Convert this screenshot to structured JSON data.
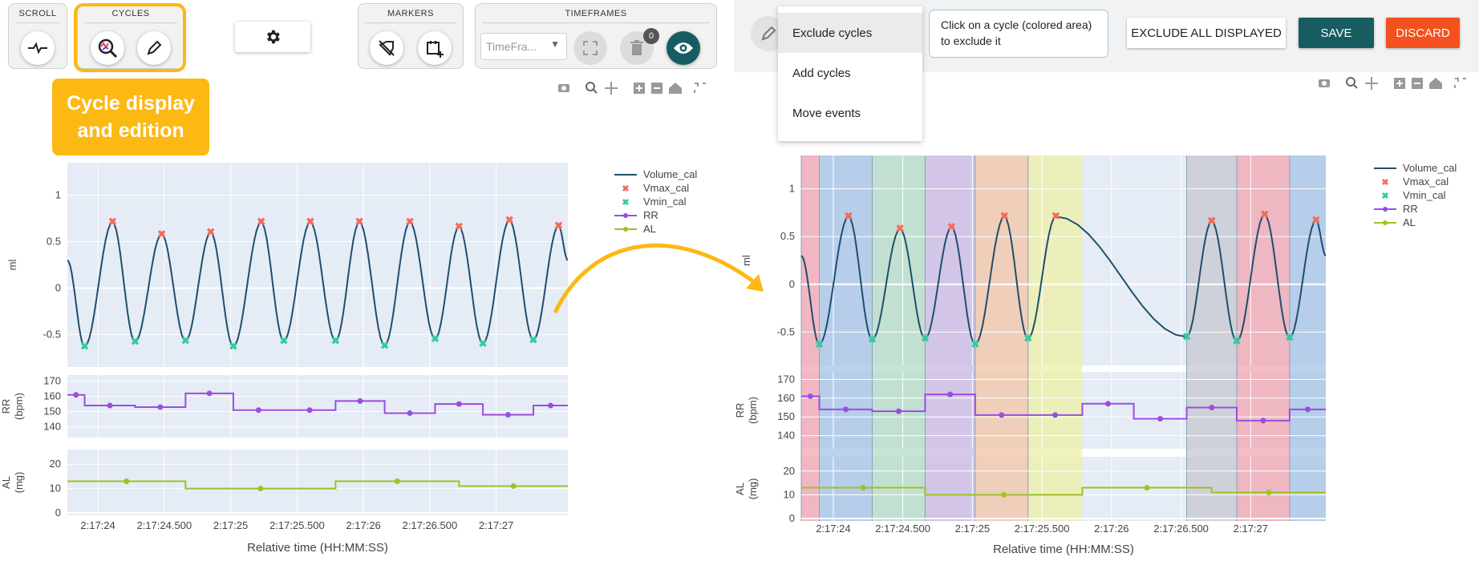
{
  "toolbar": {
    "scroll_title": "SCROLL",
    "cycles_title": "CYCLES",
    "markers_title": "MARKERS",
    "timeframes_title": "TIMEFRAMES",
    "timeframe_placeholder": "TimeFra...",
    "trash_badge": "0"
  },
  "callout": {
    "line1": "Cycle display",
    "line2": "and edition"
  },
  "edit_bar": {
    "menu_items": [
      "Exclude cycles",
      "Add cycles",
      "Move events"
    ],
    "info_line1": "Click on a cycle (colored area)",
    "info_line2": "to exclude it",
    "exclude_all_label": "EXCLUDE ALL DISPLAYED",
    "save_label": "SAVE",
    "discard_label": "DISCARD"
  },
  "colors": {
    "volume": "#1f4e6e",
    "vmax": "#ef6d5a",
    "vmin": "#34c9a3",
    "rr": "#9b4ddf",
    "al": "#9dc324",
    "plot_bg": "#e5ecf6",
    "accent_teal": "#165c60",
    "discard": "#f4511e",
    "callout": "#fcb813"
  },
  "chart_data": [
    {
      "type": "line",
      "panel": "left",
      "legend": [
        "Volume_cal",
        "Vmax_cal",
        "Vmin_cal",
        "RR",
        "AL"
      ],
      "xlabel": "Relative time (HH:MM:SS)",
      "x_ticks": [
        "2:17:24",
        "2:17:24.500",
        "2:17:25",
        "2:17:25.500",
        "2:17:26",
        "2:17:26.500",
        "2:17:27"
      ],
      "subplots": [
        {
          "ylabel": "ml",
          "y_ticks": [
            "1",
            "0.5",
            "0",
            "-0.5"
          ],
          "ylim": [
            -0.85,
            1.35
          ]
        },
        {
          "ylabel": "RR (bpm)",
          "y_ticks": [
            "170",
            "160",
            "150",
            "140"
          ],
          "ylim": [
            133,
            174
          ]
        },
        {
          "ylabel": "AL (mg)",
          "y_ticks": [
            "20",
            "10",
            "0"
          ],
          "ylim": [
            -1,
            26
          ]
        }
      ],
      "xlim": [
        23.77,
        27.54
      ],
      "vmax": [
        [
          24.11,
          0.71
        ],
        [
          24.48,
          0.58
        ],
        [
          24.85,
          0.6
        ],
        [
          25.23,
          0.71
        ],
        [
          25.6,
          0.71
        ],
        [
          25.97,
          0.71
        ],
        [
          26.35,
          0.71
        ],
        [
          26.72,
          0.66
        ],
        [
          27.1,
          0.73
        ],
        [
          27.47,
          0.67
        ]
      ],
      "vmin": [
        [
          23.9,
          -0.63
        ],
        [
          24.28,
          -0.58
        ],
        [
          24.66,
          -0.57
        ],
        [
          25.02,
          -0.63
        ],
        [
          25.4,
          -0.57
        ],
        [
          25.79,
          -0.57
        ],
        [
          26.16,
          -0.62
        ],
        [
          26.54,
          -0.55
        ],
        [
          26.9,
          -0.6
        ],
        [
          27.28,
          -0.56
        ]
      ],
      "rr_steps": [
        [
          23.77,
          161
        ],
        [
          23.9,
          154
        ],
        [
          24.28,
          153
        ],
        [
          24.66,
          162
        ],
        [
          25.02,
          151
        ],
        [
          25.4,
          151
        ],
        [
          25.79,
          157
        ],
        [
          26.16,
          149
        ],
        [
          26.54,
          155
        ],
        [
          26.9,
          148
        ],
        [
          27.28,
          154
        ]
      ],
      "al_steps": [
        [
          23.77,
          13
        ],
        [
          24.66,
          10
        ],
        [
          25.79,
          13
        ],
        [
          26.72,
          11
        ]
      ]
    },
    {
      "type": "line",
      "panel": "right",
      "legend": [
        "Volume_cal",
        "Vmax_cal",
        "Vmin_cal",
        "RR",
        "AL"
      ],
      "xlabel": "Relative time (HH:MM:SS)",
      "x_ticks": [
        "2:17:24",
        "2:17:24.500",
        "2:17:25",
        "2:17:25.500",
        "2:17:26",
        "2:17:26.500",
        "2:17:27"
      ],
      "subplots": [
        {
          "ylabel": "ml",
          "y_ticks": [
            "1",
            "0.5",
            "0",
            "-0.5"
          ],
          "ylim": [
            -0.85,
            1.35
          ]
        },
        {
          "ylabel": "RR (bpm)",
          "y_ticks": [
            "170",
            "160",
            "150",
            "140"
          ],
          "ylim": [
            133,
            174
          ]
        },
        {
          "ylabel": "AL (mg)",
          "y_ticks": [
            "20",
            "10",
            "0"
          ],
          "ylim": [
            -1,
            26
          ]
        }
      ],
      "xlim": [
        23.77,
        27.54
      ],
      "cycles": [
        {
          "x0": 23.77,
          "x1": 23.9,
          "color": "#f3a6b0"
        },
        {
          "x0": 23.9,
          "x1": 24.28,
          "color": "#a6c4e6"
        },
        {
          "x0": 24.28,
          "x1": 24.66,
          "color": "#b4dcc4"
        },
        {
          "x0": 24.66,
          "x1": 25.02,
          "color": "#cbb8e2"
        },
        {
          "x0": 25.02,
          "x1": 25.4,
          "color": "#f2c6a6"
        },
        {
          "x0": 25.4,
          "x1": 25.79,
          "color": "#eff0a6"
        },
        {
          "x0": 26.54,
          "x1": 26.9,
          "color": "#c6c8cf"
        },
        {
          "x0": 26.9,
          "x1": 27.28,
          "color": "#f0a6b0"
        },
        {
          "x0": 27.28,
          "x1": 27.54,
          "color": "#a6c4e6"
        }
      ],
      "vmax": [
        [
          24.11,
          0.71
        ],
        [
          24.48,
          0.58
        ],
        [
          24.85,
          0.6
        ],
        [
          25.23,
          0.71
        ],
        [
          25.6,
          0.71
        ],
        [
          26.72,
          0.66
        ],
        [
          27.1,
          0.73
        ],
        [
          27.47,
          0.67
        ]
      ],
      "vmin": [
        [
          23.9,
          -0.63
        ],
        [
          24.28,
          -0.58
        ],
        [
          24.66,
          -0.57
        ],
        [
          25.02,
          -0.63
        ],
        [
          25.4,
          -0.57
        ],
        [
          26.54,
          -0.55
        ],
        [
          26.9,
          -0.6
        ],
        [
          27.28,
          -0.56
        ]
      ],
      "rr_steps": [
        [
          23.77,
          161
        ],
        [
          23.9,
          154
        ],
        [
          24.28,
          153
        ],
        [
          24.66,
          162
        ],
        [
          25.02,
          151
        ],
        [
          25.4,
          151
        ],
        [
          25.79,
          157
        ],
        [
          26.16,
          149
        ],
        [
          26.54,
          155
        ],
        [
          26.9,
          148
        ],
        [
          27.28,
          154
        ]
      ],
      "al_steps": [
        [
          23.77,
          13
        ],
        [
          24.66,
          10
        ],
        [
          25.79,
          13
        ],
        [
          26.72,
          11
        ]
      ]
    }
  ]
}
